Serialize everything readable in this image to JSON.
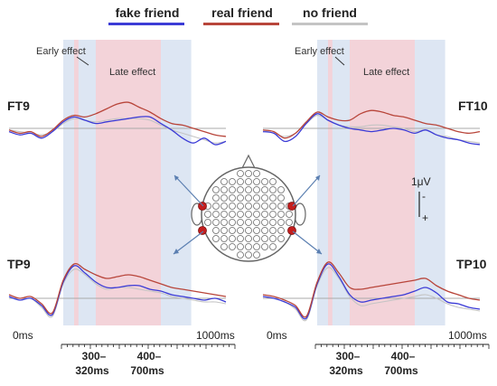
{
  "legend": [
    {
      "label": "fake friend",
      "color": "#3b3bd6"
    },
    {
      "label": "real friend",
      "color": "#b8453a"
    },
    {
      "label": "no friend",
      "color": "#c4c4c4"
    }
  ],
  "window_labels": {
    "early": "Early effect",
    "late": "Late effect"
  },
  "scale_bar": {
    "label": "1μV",
    "neg": "-",
    "pos": "+"
  },
  "time_labels": {
    "start": "0ms",
    "end": "1000ms"
  },
  "window_ranges": [
    {
      "line1": "300–",
      "line2": "320ms"
    },
    {
      "line1": "400–",
      "line2": "700ms"
    }
  ],
  "electrode_map": {
    "highlighted": [
      "FT9",
      "FT10",
      "TP9",
      "TP10"
    ],
    "marker_color": "#c41e1e"
  },
  "colors": {
    "early_band": "#dde6f3",
    "late_band": "#f3d3d9",
    "baseline": "#a9a9a9"
  },
  "chart_data": [
    {
      "type": "line",
      "title": "FT9",
      "xlim": [
        0,
        1000
      ],
      "time_windows_ms": {
        "early": [
          300,
          320
        ],
        "late": [
          400,
          700
        ]
      },
      "x": [
        0,
        50,
        100,
        150,
        200,
        250,
        300,
        350,
        400,
        450,
        500,
        550,
        600,
        650,
        700,
        750,
        800,
        850,
        900,
        950,
        1000
      ],
      "series": [
        {
          "name": "fake friend",
          "values": [
            -0.2,
            -0.4,
            -0.3,
            -0.6,
            -0.2,
            0.4,
            0.7,
            0.5,
            0.3,
            0.4,
            0.5,
            0.6,
            0.7,
            0.7,
            0.3,
            -0.1,
            -0.6,
            -0.9,
            -0.6,
            -1.0,
            -0.8
          ]
        },
        {
          "name": "real friend",
          "values": [
            -0.1,
            -0.3,
            -0.2,
            -0.5,
            -0.1,
            0.5,
            0.8,
            0.7,
            0.9,
            1.2,
            1.5,
            1.6,
            1.3,
            1.0,
            0.6,
            0.3,
            0.2,
            0.0,
            -0.2,
            -0.4,
            -0.5
          ]
        },
        {
          "name": "no friend",
          "values": [
            -0.1,
            -0.2,
            -0.3,
            -0.4,
            -0.2,
            0.3,
            0.6,
            0.5,
            0.4,
            0.5,
            0.6,
            0.6,
            0.6,
            0.5,
            0.2,
            -0.1,
            -0.3,
            -0.5,
            -0.7,
            -0.9,
            -0.8
          ]
        }
      ]
    },
    {
      "type": "line",
      "title": "FT10",
      "xlim": [
        0,
        1000
      ],
      "time_windows_ms": {
        "early": [
          300,
          320
        ],
        "late": [
          400,
          700
        ]
      },
      "x": [
        0,
        50,
        100,
        150,
        200,
        250,
        300,
        350,
        400,
        450,
        500,
        550,
        600,
        650,
        700,
        750,
        800,
        850,
        900,
        950,
        1000
      ],
      "series": [
        {
          "name": "fake friend",
          "values": [
            -0.2,
            -0.3,
            -0.8,
            -0.5,
            0.3,
            0.9,
            0.5,
            0.2,
            0.0,
            -0.1,
            -0.2,
            -0.1,
            0.0,
            -0.1,
            -0.3,
            -0.1,
            -0.4,
            -0.6,
            -0.7,
            -0.9,
            -1.0
          ]
        },
        {
          "name": "real friend",
          "values": [
            -0.1,
            -0.2,
            -0.6,
            -0.3,
            0.4,
            1.0,
            0.7,
            0.5,
            0.5,
            0.9,
            1.1,
            1.0,
            0.8,
            0.7,
            0.5,
            0.3,
            0.2,
            0.0,
            -0.2,
            -0.3,
            -0.2
          ]
        },
        {
          "name": "no friend",
          "values": [
            -0.1,
            -0.3,
            -0.5,
            -0.3,
            0.3,
            0.8,
            0.5,
            0.2,
            0.1,
            0.1,
            0.2,
            0.2,
            0.1,
            0.0,
            -0.2,
            -0.1,
            -0.4,
            -0.5,
            -0.7,
            -0.8,
            -0.9
          ]
        }
      ]
    },
    {
      "type": "line",
      "title": "TP9",
      "xlim": [
        0,
        1000
      ],
      "time_windows_ms": {
        "early": [
          300,
          320
        ],
        "late": [
          400,
          700
        ]
      },
      "x": [
        0,
        50,
        100,
        150,
        200,
        250,
        300,
        350,
        400,
        450,
        500,
        550,
        600,
        650,
        700,
        750,
        800,
        850,
        900,
        950,
        1000
      ],
      "series": [
        {
          "name": "fake friend",
          "values": [
            0.1,
            -0.1,
            0.0,
            -0.4,
            -0.9,
            0.9,
            1.8,
            1.4,
            0.9,
            0.6,
            0.6,
            0.7,
            0.7,
            0.5,
            0.4,
            0.2,
            0.1,
            0.0,
            -0.1,
            0.0,
            -0.2
          ]
        },
        {
          "name": "real friend",
          "values": [
            0.2,
            0.0,
            0.1,
            -0.3,
            -0.8,
            1.0,
            1.9,
            1.6,
            1.3,
            1.1,
            1.2,
            1.3,
            1.2,
            1.0,
            0.8,
            0.6,
            0.5,
            0.4,
            0.3,
            0.2,
            0.1
          ]
        },
        {
          "name": "no friend",
          "values": [
            0.1,
            -0.1,
            0.0,
            -0.5,
            -1.0,
            0.8,
            1.6,
            1.3,
            0.8,
            0.5,
            0.6,
            0.6,
            0.5,
            0.4,
            0.3,
            0.1,
            0.0,
            -0.1,
            -0.2,
            -0.2,
            -0.3
          ]
        }
      ]
    },
    {
      "type": "line",
      "title": "TP10",
      "xlim": [
        0,
        1000
      ],
      "time_windows_ms": {
        "early": [
          300,
          320
        ],
        "late": [
          400,
          700
        ]
      },
      "x": [
        0,
        50,
        100,
        150,
        200,
        250,
        300,
        350,
        400,
        450,
        500,
        550,
        600,
        650,
        700,
        750,
        800,
        850,
        900,
        950,
        1000
      ],
      "series": [
        {
          "name": "fake friend",
          "values": [
            0.1,
            0.0,
            -0.2,
            -0.5,
            -1.1,
            0.8,
            1.9,
            1.2,
            0.2,
            -0.2,
            -0.1,
            0.0,
            0.1,
            0.2,
            0.4,
            0.6,
            0.3,
            -0.2,
            -0.3,
            -0.5,
            -0.6
          ]
        },
        {
          "name": "real friend",
          "values": [
            0.2,
            0.1,
            -0.1,
            -0.4,
            -1.0,
            0.9,
            2.0,
            1.4,
            0.6,
            0.5,
            0.6,
            0.7,
            0.8,
            0.9,
            1.0,
            1.1,
            0.7,
            0.4,
            0.2,
            0.0,
            -0.1
          ]
        },
        {
          "name": "no friend",
          "values": [
            0.1,
            0.0,
            -0.2,
            -0.6,
            -1.2,
            0.7,
            1.7,
            1.1,
            0.1,
            -0.4,
            -0.3,
            -0.2,
            -0.1,
            0.0,
            0.1,
            0.2,
            0.0,
            -0.3,
            -0.5,
            -0.6,
            -0.7
          ]
        }
      ]
    }
  ]
}
